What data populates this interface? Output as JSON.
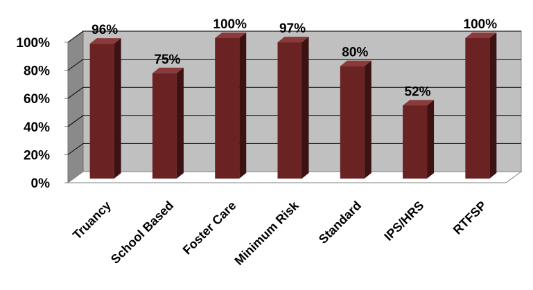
{
  "chart_data": {
    "type": "bar",
    "categories": [
      "Truancy",
      "School Based",
      "Foster Care",
      "Minimum Risk",
      "Standard",
      "IPS/HRS",
      "RTFSP"
    ],
    "values": [
      96,
      75,
      100,
      97,
      80,
      52,
      100
    ],
    "data_labels": [
      "96%",
      "75%",
      "100%",
      "97%",
      "80%",
      "52%",
      "100%"
    ],
    "y_ticks": [
      "0%",
      "20%",
      "40%",
      "60%",
      "80%",
      "100%"
    ],
    "ylim": [
      0,
      100
    ],
    "grid": true,
    "legend": "none",
    "style": "3d-column",
    "colors": {
      "bar_front": "#6b2222",
      "bar_side": "#3d1212",
      "bar_top": "#8a3a3a",
      "wall": "#c0c0c0",
      "side_wall": "#8a8a8a",
      "floor": "#ffffff"
    }
  }
}
